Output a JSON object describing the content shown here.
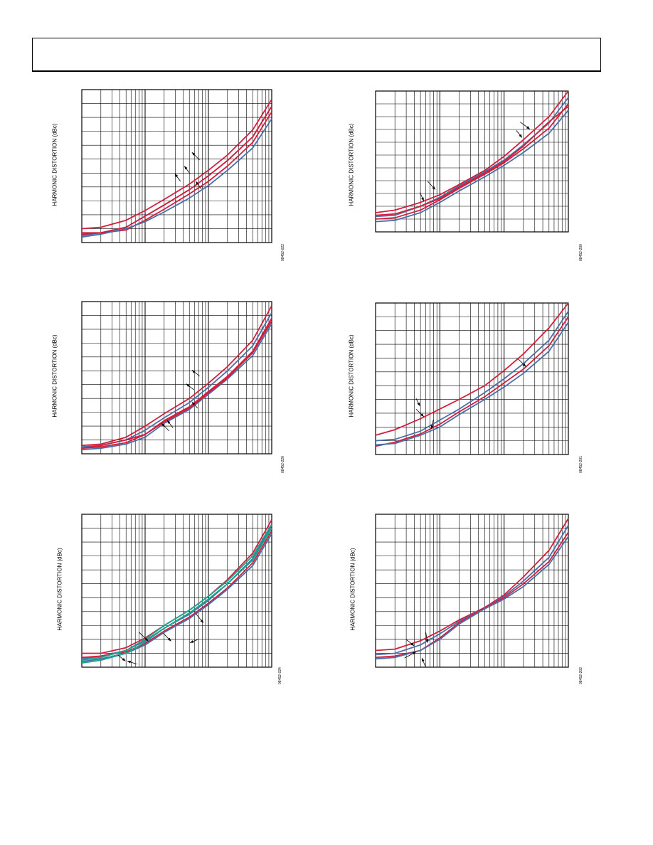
{
  "page": {
    "header": ""
  },
  "colors": {
    "red": "#d21f3c",
    "blue": "#4a6fa8",
    "teal": "#1aa58c",
    "grid": "#000000"
  },
  "panels": [
    {
      "ylabel": "HARMONIC DISTORTION (dBc)",
      "fig_id": "08452-022",
      "chart_data": {
        "type": "line",
        "xscale": "log",
        "xlim": [
          0.1,
          100
        ],
        "ylim": [
          -110,
          0
        ],
        "series": [
          {
            "color": "red",
            "x": [
              0.1,
              0.2,
              0.5,
              1,
              2,
              5,
              10,
              20,
              50,
              100
            ],
            "y": [
              -100,
              -99,
              -94,
              -87,
              -79,
              -68,
              -58,
              -47,
              -29,
              -7
            ]
          },
          {
            "color": "blue",
            "x": [
              0.1,
              0.2,
              0.5,
              1,
              2,
              5,
              10,
              20,
              50,
              100
            ],
            "y": [
              -105,
              -103,
              -99,
              -91,
              -83,
              -72,
              -62,
              -51,
              -34,
              -12
            ]
          },
          {
            "color": "red",
            "x": [
              0.1,
              0.2,
              0.5,
              1,
              2,
              5,
              10,
              20,
              50,
              100
            ],
            "y": [
              -103,
              -103,
              -101,
              -94,
              -86,
              -75,
              -66,
              -55,
              -38,
              -16
            ]
          },
          {
            "color": "blue",
            "x": [
              0.1,
              0.2,
              0.5,
              1,
              2,
              5,
              10,
              20,
              50,
              100
            ],
            "y": [
              -106,
              -104,
              -100,
              -95,
              -88,
              -78,
              -69,
              -58,
              -42,
              -21
            ]
          },
          {
            "color": "red",
            "x": [
              0.1,
              0.2,
              0.5,
              1,
              2,
              5,
              10,
              20,
              50,
              100
            ],
            "y": [
              -104,
              -103,
              -99,
              -91,
              -83,
              -72,
              -62,
              -51,
              -34,
              -12
            ]
          }
        ],
        "arrows": [
          [
            0.62,
            0.46,
            0.58,
            0.41
          ],
          [
            0.57,
            0.55,
            0.54,
            0.5
          ],
          [
            0.63,
            0.65,
            0.6,
            0.6
          ],
          [
            0.52,
            0.6,
            0.49,
            0.55
          ]
        ]
      }
    },
    {
      "ylabel": "HARMONIC DISTORTION (dBc)",
      "fig_id": "08452-200",
      "chart_data": {
        "type": "line",
        "xscale": "log",
        "xlim": [
          0.1,
          100
        ],
        "ylim": [
          -110,
          0
        ],
        "series": [
          {
            "color": "red",
            "x": [
              0.1,
              0.2,
              0.5,
              1,
              2,
              5,
              10,
              20,
              50,
              100
            ],
            "y": [
              -95,
              -93,
              -87,
              -81,
              -73,
              -62,
              -51,
              -38,
              -20,
              0
            ]
          },
          {
            "color": "blue",
            "x": [
              0.1,
              0.2,
              0.5,
              1,
              2,
              5,
              10,
              20,
              50,
              100
            ],
            "y": [
              -98,
              -97,
              -90,
              -83,
              -74,
              -63,
              -54,
              -42,
              -25,
              -5
            ]
          },
          {
            "color": "red",
            "x": [
              0.1,
              0.2,
              0.5,
              1,
              2,
              5,
              10,
              20,
              50,
              100
            ],
            "y": [
              -100,
              -99,
              -93,
              -85,
              -76,
              -65,
              -56,
              -45,
              -29,
              -10
            ]
          },
          {
            "color": "blue",
            "x": [
              0.1,
              0.2,
              0.5,
              1,
              2,
              5,
              10,
              20,
              50,
              100
            ],
            "y": [
              -102,
              -101,
              -95,
              -87,
              -78,
              -67,
              -58,
              -48,
              -33,
              -15
            ]
          },
          {
            "color": "red",
            "x": [
              0.1,
              0.2,
              0.5,
              1,
              2,
              5,
              10,
              20,
              50,
              100
            ],
            "y": [
              -97,
              -96,
              -90,
              -84,
              -75,
              -64,
              -55,
              -43,
              -24,
              -12
            ]
          }
        ],
        "arrows": [
          [
            0.75,
            0.22,
            0.8,
            0.27
          ],
          [
            0.73,
            0.28,
            0.76,
            0.33
          ],
          [
            0.27,
            0.64,
            0.31,
            0.7
          ],
          [
            0.23,
            0.72,
            0.25,
            0.78
          ]
        ]
      }
    },
    {
      "ylabel": "HARMONIC DISTORTION (dBc)",
      "fig_id": "08452-220",
      "chart_data": {
        "type": "line",
        "xscale": "log",
        "xlim": [
          0.1,
          100
        ],
        "ylim": [
          -110,
          0
        ],
        "series": [
          {
            "color": "red",
            "x": [
              0.1,
              0.2,
              0.5,
              1,
              2,
              5,
              10,
              20,
              50,
              100
            ],
            "y": [
              -104,
              -103,
              -98,
              -90,
              -81,
              -70,
              -59,
              -47,
              -28,
              -3
            ]
          },
          {
            "color": "blue",
            "x": [
              0.1,
              0.2,
              0.5,
              1,
              2,
              5,
              10,
              20,
              50,
              100
            ],
            "y": [
              -105,
              -104,
              -100,
              -93,
              -84,
              -73,
              -62,
              -50,
              -32,
              -8
            ]
          },
          {
            "color": "red",
            "x": [
              0.1,
              0.2,
              0.5,
              1,
              2,
              5,
              10,
              20,
              50,
              100
            ],
            "y": [
              -106,
              -105,
              -102,
              -96,
              -86,
              -76,
              -65,
              -54,
              -36,
              -12
            ]
          },
          {
            "color": "blue",
            "x": [
              0.1,
              0.2,
              0.5,
              1,
              2,
              5,
              10,
              20,
              50,
              100
            ],
            "y": [
              -107,
              -106,
              -103,
              -98,
              -88,
              -78,
              -67,
              -56,
              -39,
              -16
            ]
          },
          {
            "color": "red",
            "x": [
              0.1,
              0.2,
              0.5,
              1,
              2,
              5,
              10,
              20,
              50,
              100
            ],
            "y": [
              -106,
              -104,
              -100,
              -96,
              -87,
              -77,
              -66,
              -55,
              -37,
              -14
            ]
          }
        ],
        "arrows": [
          [
            0.62,
            0.49,
            0.58,
            0.45
          ],
          [
            0.59,
            0.58,
            0.55,
            0.54
          ],
          [
            0.61,
            0.7,
            0.58,
            0.66
          ],
          [
            0.48,
            0.83,
            0.45,
            0.78
          ],
          [
            0.46,
            0.85,
            0.42,
            0.8
          ]
        ]
      }
    },
    {
      "ylabel": "HARMONIC DISTORTION (dBc)",
      "fig_id": "08452-201",
      "chart_data": {
        "type": "line",
        "xscale": "log",
        "xlim": [
          0.1,
          100
        ],
        "ylim": [
          -110,
          0
        ],
        "series": [
          {
            "color": "red",
            "x": [
              0.1,
              0.2,
              0.5,
              1,
              2,
              5,
              10,
              20,
              50,
              100
            ],
            "y": [
              -96,
              -92,
              -84,
              -77,
              -70,
              -60,
              -49,
              -37,
              -18,
              0
            ]
          },
          {
            "color": "blue",
            "x": [
              0.1,
              0.2,
              0.5,
              1,
              2,
              5,
              10,
              20,
              50,
              100
            ],
            "y": [
              -100,
              -99,
              -93,
              -85,
              -77,
              -65,
              -55,
              -44,
              -27,
              -6
            ]
          },
          {
            "color": "red",
            "x": [
              0.1,
              0.2,
              0.5,
              1,
              2,
              5,
              10,
              20,
              50,
              100
            ],
            "y": [
              -104,
              -101,
              -95,
              -88,
              -79,
              -68,
              -58,
              -48,
              -31,
              -10
            ]
          },
          {
            "color": "blue",
            "x": [
              0.1,
              0.2,
              0.5,
              1,
              2,
              5,
              10,
              20,
              50,
              100
            ],
            "y": [
              -103,
              -102,
              -96,
              -90,
              -81,
              -70,
              -61,
              -51,
              -35,
              -14
            ]
          }
        ],
        "arrows": [
          [
            0.74,
            0.37,
            0.78,
            0.42
          ],
          [
            0.21,
            0.7,
            0.25,
            0.75
          ],
          [
            0.3,
            0.77,
            0.29,
            0.83
          ],
          [
            0.21,
            0.63,
            0.23,
            0.68
          ]
        ]
      }
    },
    {
      "ylabel": "HARMONIC DISTORTION (dBc)",
      "fig_id": "08452-024",
      "chart_data": {
        "type": "line",
        "xscale": "log",
        "xlim": [
          0.1,
          100
        ],
        "ylim": [
          -110,
          0
        ],
        "series": [
          {
            "color": "red",
            "x": [
              0.1,
              0.2,
              0.5,
              1,
              2,
              5,
              10,
              20,
              50,
              100
            ],
            "y": [
              -100,
              -100,
              -96,
              -89,
              -80,
              -69,
              -59,
              -47,
              -28,
              -4
            ]
          },
          {
            "color": "blue",
            "x": [
              0.1,
              0.2,
              0.5,
              1,
              2,
              5,
              10,
              20,
              50,
              100
            ],
            "y": [
              -104,
              -102,
              -98,
              -91,
              -82,
              -72,
              -62,
              -50,
              -32,
              -8
            ]
          },
          {
            "color": "red",
            "x": [
              0.1,
              0.2,
              0.5,
              1,
              2,
              5,
              10,
              20,
              50,
              100
            ],
            "y": [
              -103,
              -102,
              -99,
              -93,
              -84,
              -74,
              -64,
              -53,
              -35,
              -12
            ]
          },
          {
            "color": "blue",
            "x": [
              0.1,
              0.2,
              0.5,
              1,
              2,
              5,
              10,
              20,
              50,
              100
            ],
            "y": [
              -106,
              -104,
              -100,
              -94,
              -85,
              -75,
              -65,
              -54,
              -37,
              -14
            ]
          },
          {
            "color": "teal",
            "x": [
              0.1,
              0.2,
              0.5,
              1,
              2,
              5,
              10,
              20,
              50,
              100
            ],
            "y": [
              -105,
              -103,
              -98,
              -90,
              -80,
              -69,
              -59,
              -48,
              -30,
              -7
            ]
          },
          {
            "color": "teal",
            "x": [
              0.1,
              0.2,
              0.5,
              1,
              2,
              5,
              10,
              20,
              50,
              100
            ],
            "y": [
              -107,
              -105,
              -100,
              -92,
              -82,
              -71,
              -61,
              -50,
              -33,
              -10
            ]
          }
        ],
        "arrows": [
          [
            0.6,
            0.65,
            0.64,
            0.71
          ],
          [
            0.43,
            0.78,
            0.47,
            0.83
          ],
          [
            0.3,
            0.77,
            0.35,
            0.83
          ],
          [
            0.61,
            0.82,
            0.57,
            0.84
          ],
          [
            0.19,
            0.92,
            0.23,
            0.96
          ],
          [
            0.29,
            0.98,
            0.24,
            0.96
          ]
        ]
      }
    },
    {
      "ylabel": "HARMONIC DISTORTION (dBc)",
      "fig_id": "08452-202",
      "chart_data": {
        "type": "line",
        "xscale": "log",
        "xlim": [
          0.1,
          100
        ],
        "ylim": [
          -110,
          0
        ],
        "series": [
          {
            "color": "red",
            "x": [
              0.1,
              0.2,
              0.5,
              1,
              2,
              5,
              10,
              20,
              50,
              100
            ],
            "y": [
              -98,
              -97,
              -91,
              -84,
              -76,
              -67,
              -58,
              -45,
              -26,
              -3
            ]
          },
          {
            "color": "blue",
            "x": [
              0.1,
              0.2,
              0.5,
              1,
              2,
              5,
              10,
              20,
              50,
              100
            ],
            "y": [
              -101,
              -100,
              -94,
              -86,
              -77,
              -67,
              -59,
              -48,
              -31,
              -8
            ]
          },
          {
            "color": "red",
            "x": [
              0.1,
              0.2,
              0.5,
              1,
              2,
              5,
              10,
              20,
              50,
              100
            ],
            "y": [
              -103,
              -102,
              -98,
              -89,
              -78,
              -67,
              -60,
              -50,
              -34,
              -13
            ]
          },
          {
            "color": "blue",
            "x": [
              0.1,
              0.2,
              0.5,
              1,
              2,
              5,
              10,
              20,
              50,
              100
            ],
            "y": [
              -104,
              -103,
              -98,
              -90,
              -79,
              -68,
              -61,
              -52,
              -36,
              -16
            ]
          }
        ],
        "arrows": [
          [
            0.16,
            0.82,
            0.2,
            0.86
          ],
          [
            0.26,
            0.77,
            0.27,
            0.84
          ],
          [
            0.15,
            0.94,
            0.21,
            0.9
          ],
          [
            0.26,
            1.0,
            0.24,
            0.94
          ]
        ]
      }
    }
  ]
}
